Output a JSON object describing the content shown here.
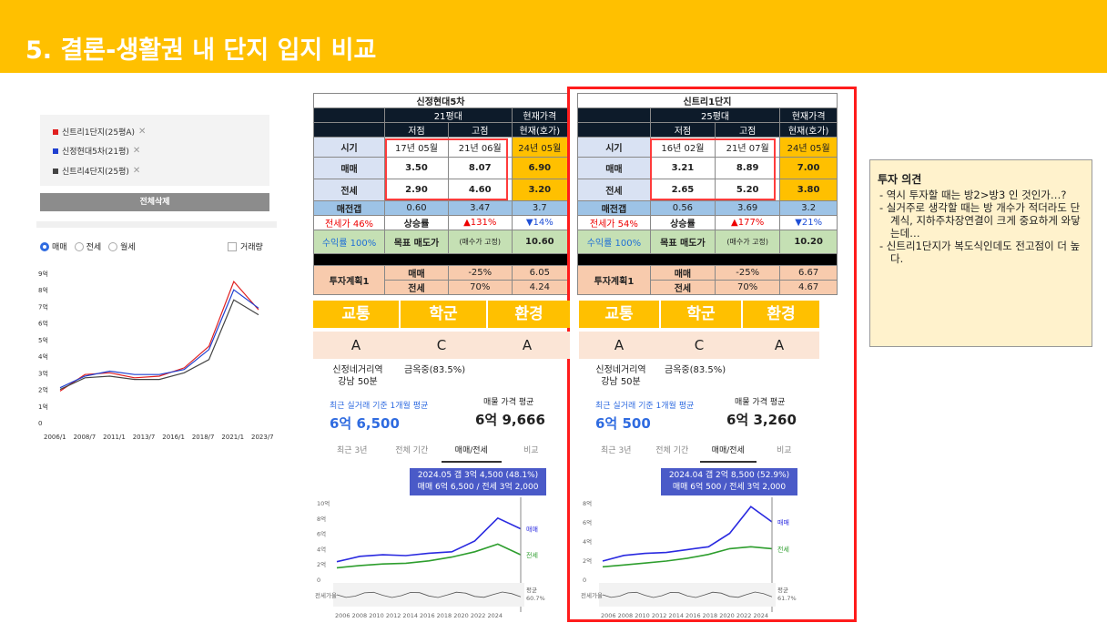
{
  "slide": {
    "title": "5. 결론-생활권 내 단지 입지 비교"
  },
  "left_panel": {
    "legend": [
      {
        "label": "신트리1단지(25평A)",
        "color": "#e02020",
        "remove": "✕"
      },
      {
        "label": "신정현대5차(21평)",
        "color": "#2040d0",
        "remove": "✕"
      },
      {
        "label": "신트리4단지(25평)",
        "color": "#444444",
        "remove": "✕"
      }
    ],
    "clear_button": "전체삭제",
    "radios": [
      {
        "label": "매매",
        "checked": true
      },
      {
        "label": "전세",
        "checked": false
      },
      {
        "label": "월세",
        "checked": false
      }
    ],
    "volume_checkbox": "거래량",
    "chart_data": {
      "type": "line",
      "y_ticks": [
        "9억",
        "8억",
        "7억",
        "6억",
        "5억",
        "4억",
        "3억",
        "2억",
        "1억",
        "0"
      ],
      "x_ticks": [
        "2006/1",
        "2008/7",
        "2011/1",
        "2013/7",
        "2016/1",
        "2018/7",
        "2021/1",
        "2023/7"
      ],
      "ylim": [
        0,
        9
      ],
      "series": [
        {
          "name": "신트리1단지(25평A)",
          "color": "#e02020",
          "values": [
            1.9,
            2.9,
            3.0,
            2.7,
            2.8,
            3.3,
            4.6,
            8.5,
            6.8
          ]
        },
        {
          "name": "신정현대5차(21평)",
          "color": "#2040d0",
          "values": [
            2.1,
            2.8,
            3.1,
            2.9,
            2.9,
            3.2,
            4.4,
            8.0,
            6.9
          ]
        },
        {
          "name": "신트리4단지(25평)",
          "color": "#444444",
          "values": [
            2.0,
            2.7,
            2.8,
            2.6,
            2.6,
            3.0,
            3.8,
            7.4,
            6.5
          ]
        }
      ]
    }
  },
  "complex_a": {
    "name": "신정현대5차",
    "size": "21평대",
    "current_price": "현재가격",
    "col_low": "저점",
    "col_high": "고점",
    "col_now": "현재(호가)",
    "row_time": "시기",
    "row_sale": "매매",
    "row_jeonse": "전세",
    "time": [
      "17년 05월",
      "21년 06월",
      "24년 05월"
    ],
    "sale": [
      "3.50",
      "8.07",
      "6.90"
    ],
    "jeonse": [
      "2.90",
      "4.60",
      "3.20"
    ],
    "gap_label": "매전갭",
    "gap": [
      "0.60",
      "3.47",
      "3.7"
    ],
    "ratio_label": "전세가 46%",
    "rise_label": "상승률",
    "rise_up": "▲131%",
    "rise_down": "▼14%",
    "yield_label": "수익률 100%",
    "target_label": "목표 매도가",
    "target_note": "(매수가 고정)",
    "target": "10.60",
    "plan_label": "투자계획1",
    "plan_sale": [
      "매매",
      "-25%",
      "6.05"
    ],
    "plan_jeonse": [
      "전세",
      "70%",
      "4.24"
    ],
    "tiles": [
      "교통",
      "학군",
      "환경"
    ],
    "grades": [
      "A",
      "C",
      "A"
    ],
    "transport": "신정네거리역\n강남 50분",
    "school": "금옥중(83.5%)",
    "avg_label": "최근 실거래 기준 1개월 평균",
    "avg_value": "6억 6,500",
    "list_label": "매물 가격 평균",
    "list_value": "6억 9,666",
    "tabs": [
      "최근 3년",
      "전체 기간",
      "매매/전세",
      "비교"
    ],
    "tooltip_1": "2024.05  갭 3억 4,500 (48.1%)",
    "tooltip_2": "매매 6억 6,500 / 전세 3억 2,000",
    "chart_data": {
      "type": "line",
      "y_ticks": [
        "10억",
        "8억",
        "6억",
        "4억",
        "2억",
        "0"
      ],
      "ylim": [
        0,
        10
      ],
      "x_ticks": "2006 2008 2010 2012 2014 2016 2018 2020 2022 2024",
      "series": [
        {
          "name": "매매",
          "color": "#2a2ae0",
          "values": [
            2.3,
            3.0,
            3.2,
            3.1,
            3.4,
            3.6,
            5.0,
            8.0,
            6.6
          ]
        },
        {
          "name": "전세",
          "color": "#2e9e2e",
          "values": [
            1.5,
            1.8,
            2.0,
            2.1,
            2.4,
            2.9,
            3.6,
            4.6,
            3.2
          ]
        }
      ],
      "ratio_label": "전세가율",
      "avg_label": "평균",
      "avg_value": "60.7%"
    }
  },
  "complex_b": {
    "name": "신트리1단지",
    "size": "25평대",
    "current_price": "현재가격",
    "col_low": "저점",
    "col_high": "고점",
    "col_now": "현재(호가)",
    "row_time": "시기",
    "row_sale": "매매",
    "row_jeonse": "전세",
    "time": [
      "16년 02월",
      "21년 07월",
      "24년 05월"
    ],
    "sale": [
      "3.21",
      "8.89",
      "7.00"
    ],
    "jeonse": [
      "2.65",
      "5.20",
      "3.80"
    ],
    "gap_label": "매전갭",
    "gap": [
      "0.56",
      "3.69",
      "3.2"
    ],
    "ratio_label": "전세가 54%",
    "rise_label": "상승률",
    "rise_up": "▲177%",
    "rise_down": "▼21%",
    "yield_label": "수익률 100%",
    "target_label": "목표 매도가",
    "target_note": "(매수가 고정)",
    "target": "10.20",
    "plan_label": "투자계획1",
    "plan_sale": [
      "매매",
      "-25%",
      "6.67"
    ],
    "plan_jeonse": [
      "전세",
      "70%",
      "4.67"
    ],
    "tiles": [
      "교통",
      "학군",
      "환경"
    ],
    "grades": [
      "A",
      "C",
      "A"
    ],
    "transport": "신정네거리역\n강남 50분",
    "school": "금옥중(83.5%)",
    "avg_label": "최근 실거래 기준 1개월 평균",
    "avg_value": "6억 500",
    "list_label": "매물 가격 평균",
    "list_value": "6억 3,260",
    "tabs": [
      "최근 3년",
      "전체 기간",
      "매매/전세",
      "비교"
    ],
    "tooltip_1": "2024.04  갭 2억 8,500 (52.9%)",
    "tooltip_2": "매매 6억 500 / 전세 3억 2,000",
    "chart_data": {
      "type": "line",
      "y_ticks": [
        "8억",
        "6억",
        "4억",
        "2억",
        "0"
      ],
      "ylim": [
        0,
        8
      ],
      "x_ticks": "2006 2008 2010 2012 2014 2016 2018 2020 2022 2024",
      "series": [
        {
          "name": "매매",
          "color": "#2a2ae0",
          "values": [
            1.9,
            2.5,
            2.7,
            2.8,
            3.1,
            3.4,
            4.8,
            7.6,
            6.0
          ]
        },
        {
          "name": "전세",
          "color": "#2e9e2e",
          "values": [
            1.3,
            1.5,
            1.7,
            1.9,
            2.2,
            2.6,
            3.2,
            3.4,
            3.2
          ]
        }
      ],
      "ratio_label": "전세가율",
      "avg_label": "평균",
      "avg_value": "61.7%"
    }
  },
  "opinion": {
    "title": "투자 의견",
    "items": [
      "-  역시 투자할 때는 방2>방3 인 것인가…?",
      "-  실거주로 생각할 때는 방 개수가 적더라도 단계식, 지하주차장연결이 크게 중요하게 와닿는데…",
      "-  신트리1단지가 복도식인데도 전고점이 더 높다."
    ]
  }
}
